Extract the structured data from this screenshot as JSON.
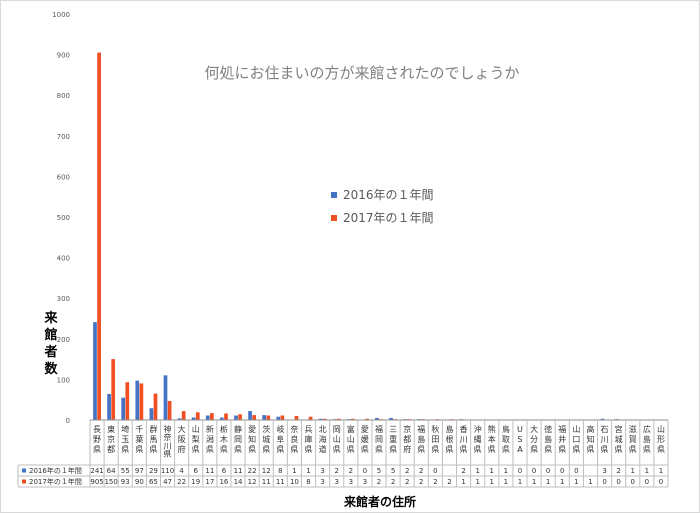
{
  "chart_data": {
    "type": "bar",
    "title": "何処にお住まいの方が来館されたのでしょうか",
    "xlabel": "来館者の住所",
    "ylabel": "来館者数",
    "ylim": [
      0,
      1000
    ],
    "yticks": [
      "0",
      "100",
      "200",
      "300",
      "400",
      "500",
      "600",
      "700",
      "800",
      "900",
      "1000"
    ],
    "grid": false,
    "legend_position": "center-right",
    "categories": [
      "長野県",
      "東京都",
      "埼玉県",
      "千葉県",
      "群馬県",
      "神奈川県",
      "大阪府",
      "山梨県",
      "新潟県",
      "栃木県",
      "静岡県",
      "愛知県",
      "茨城県",
      "岐阜県",
      "奈良県",
      "兵庫県",
      "北海道",
      "岡山県",
      "富山県",
      "愛媛県",
      "福岡県",
      "三重県",
      "京都府",
      "福島県",
      "秋田県",
      "島根県",
      "香川県",
      "沖縄県",
      "熊本県",
      "鳥取県",
      "USA",
      "大分県",
      "徳島県",
      "福井県",
      "山口県",
      "高知県",
      "石川県",
      "宮城県",
      "滋賀県",
      "広島県",
      "山形県"
    ],
    "series": [
      {
        "name": "2016年の１年間",
        "color": "#4472c4",
        "values": [
          241,
          64,
          55,
          97,
          29,
          110,
          4,
          6,
          11,
          6,
          11,
          22,
          12,
          8,
          1,
          1,
          3,
          2,
          2,
          0,
          5,
          5,
          2,
          2,
          0,
          null,
          2,
          1,
          1,
          1,
          0,
          0,
          0,
          0,
          0,
          null,
          3,
          2,
          1,
          1,
          1
        ],
        "labels": [
          "241",
          "64",
          "55",
          "97",
          "29",
          "110",
          "4",
          "6",
          "11",
          "6",
          "11",
          "22",
          "12",
          "8",
          "1",
          "1",
          "3",
          "2",
          "2",
          "0",
          "5",
          "5",
          "2",
          "2",
          "0",
          "",
          "2",
          "1",
          "1",
          "1",
          "0",
          "0",
          "0",
          "0",
          "0",
          "",
          "3",
          "2",
          "1",
          "1",
          "1"
        ]
      },
      {
        "name": "2017年の１年間",
        "color": "#f04e23",
        "values": [
          905,
          150,
          93,
          90,
          65,
          47,
          22,
          19,
          17,
          16,
          14,
          12,
          11,
          11,
          10,
          8,
          3,
          3,
          3,
          3,
          2,
          2,
          2,
          2,
          2,
          2,
          1,
          1,
          1,
          1,
          1,
          1,
          1,
          1,
          1,
          1,
          0,
          0,
          0,
          0,
          0
        ],
        "labels": [
          "905",
          "150",
          "93",
          "90",
          "65",
          "47",
          "22",
          "19",
          "17",
          "16",
          "14",
          "12",
          "11",
          "11",
          "10",
          "8",
          "3",
          "3",
          "3",
          "3",
          "2",
          "2",
          "2",
          "2",
          "2",
          "2",
          "1",
          "1",
          "1",
          "1",
          "1",
          "1",
          "1",
          "1",
          "1",
          "1",
          "0",
          "0",
          "0",
          "0",
          "0"
        ]
      }
    ]
  }
}
